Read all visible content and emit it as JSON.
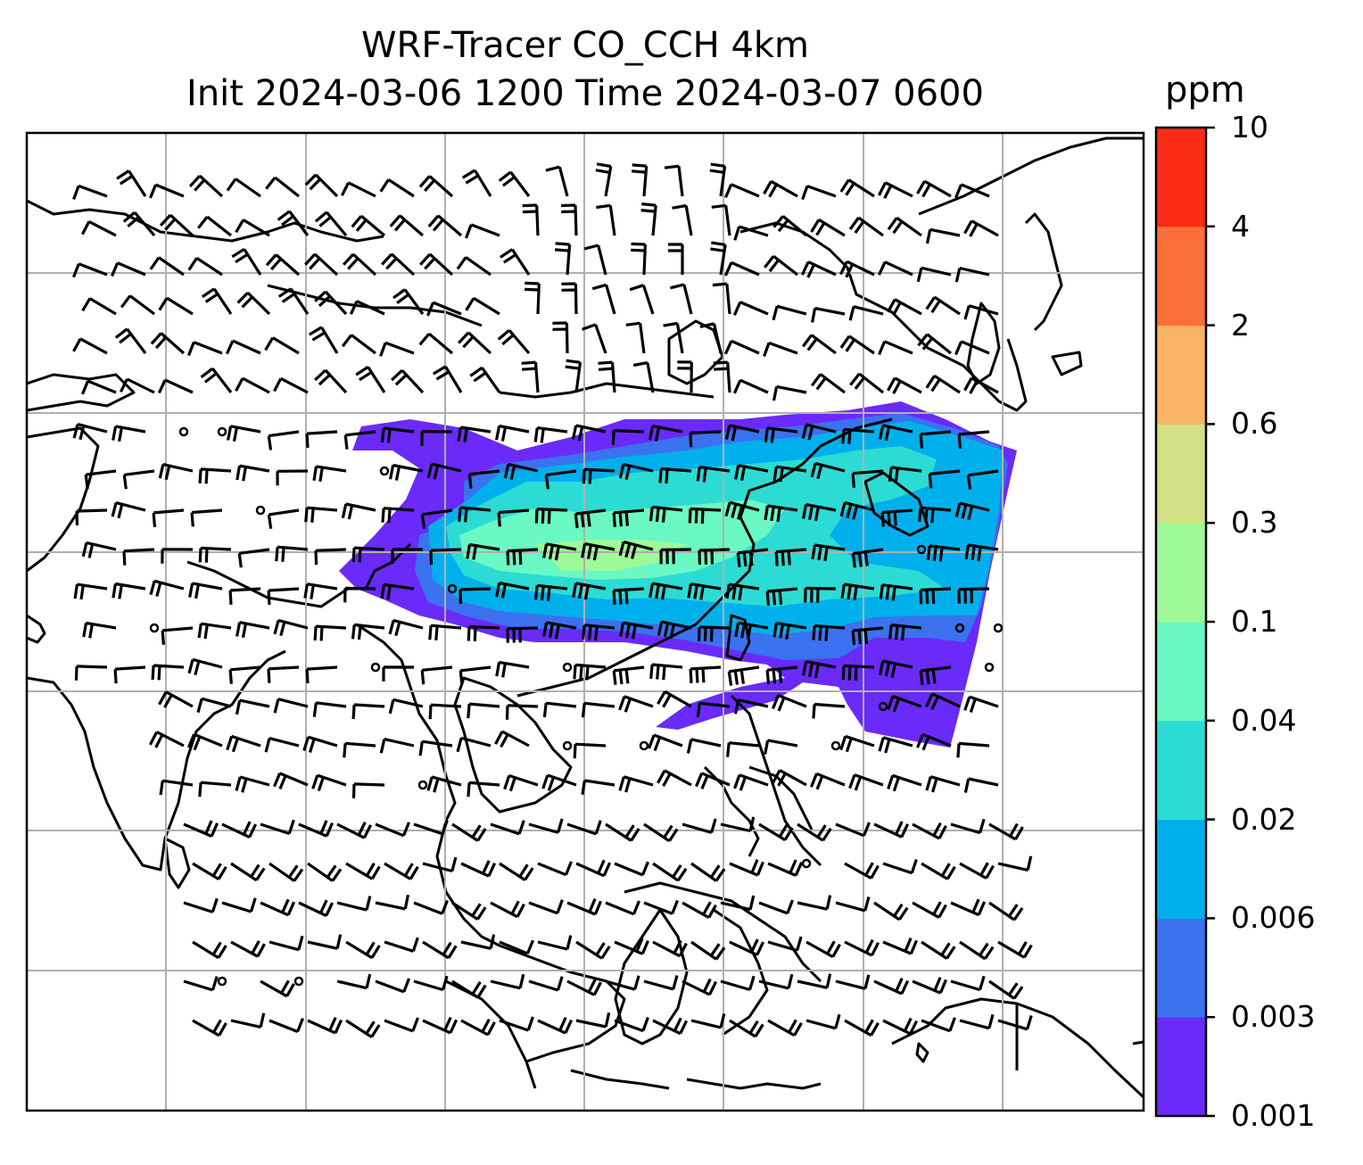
{
  "title": {
    "line1": "WRF-Tracer CO_CCH 4km",
    "line2": "Init 2024-03-06 1200 Time 2024-03-07 0600"
  },
  "colorbar": {
    "unit": "ppm",
    "ticks": [
      "0.001",
      "0.003",
      "0.006",
      "0.02",
      "0.04",
      "0.1",
      "0.3",
      "0.6",
      "2",
      "4",
      "10"
    ],
    "colors": [
      "#6a2afa",
      "#3a72f0",
      "#00b0ec",
      "#2cdcd4",
      "#6af8c4",
      "#9efa98",
      "#d4e086",
      "#fab264",
      "#fa703a",
      "#fa2c16"
    ]
  },
  "map": {
    "type": "wind barbs over tracer concentration field",
    "gridlines": true,
    "coastline_color": "#000000"
  }
}
